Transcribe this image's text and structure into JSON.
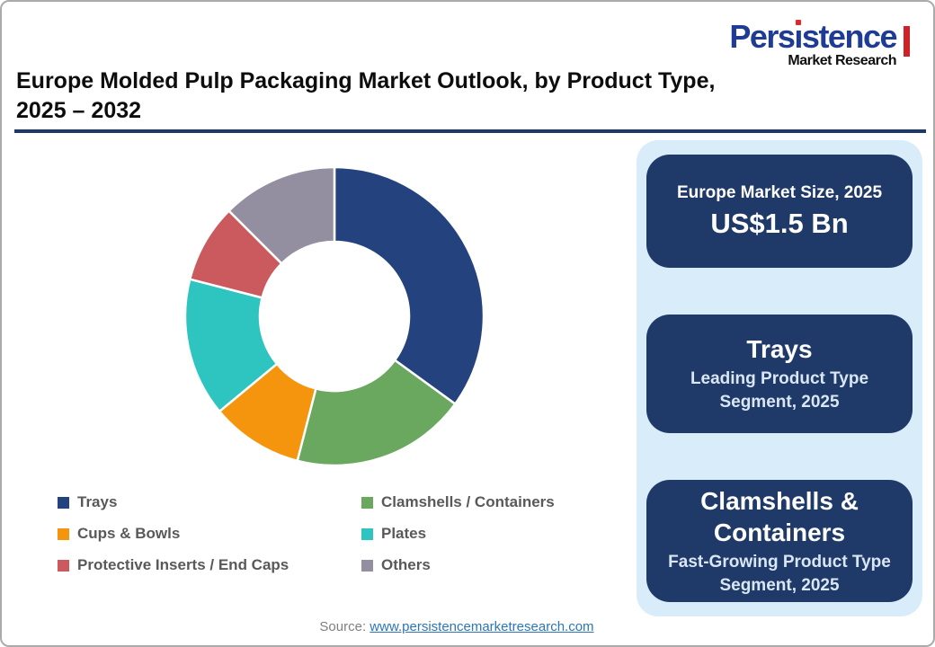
{
  "page": {
    "title_line1": "Europe Molded Pulp Packaging Market Outlook, by Product Type,",
    "title_line2": "2025 – 2032",
    "source_label": "Source:",
    "source_link": "www.persistencemarketresearch.com"
  },
  "brand": {
    "name_pre": "Pers",
    "name_dotless_i": "ı",
    "name_post": "stence",
    "subtitle": "Market Research",
    "name_color": "#1f3c94",
    "accent_red": "#d02028"
  },
  "sidebar": {
    "panel_color": "#d9ecf9",
    "card_color": "#1f3a68",
    "cards": [
      {
        "title": "Europe Market Size, 2025",
        "value": "US$1.5 Bn"
      },
      {
        "title": "Trays",
        "subtitle": "Leading Product Type Segment, 2025"
      },
      {
        "title": "Clamshells & Containers",
        "subtitle": "Fast-Growing Product Type Segment, 2025"
      }
    ]
  },
  "chart_data": {
    "type": "pie",
    "subtype": "donut",
    "title": "Europe Molded Pulp Packaging Market Outlook, by Product Type, 2025 – 2032",
    "start_angle_deg": 0,
    "direction": "clockwise",
    "inner_radius_ratio": 0.49,
    "legend_position": "bottom-two-columns",
    "segments": [
      {
        "label": "Trays",
        "value_pct": 35.0,
        "color": "#24427d"
      },
      {
        "label": "Clamshells / Containers",
        "value_pct": 19.0,
        "color": "#69a85e"
      },
      {
        "label": "Cups & Bowls",
        "value_pct": 10.0,
        "color": "#f5950e"
      },
      {
        "label": "Plates",
        "value_pct": 15.0,
        "color": "#2ec4bf"
      },
      {
        "label": "Protective Inserts / End Caps",
        "value_pct": 8.5,
        "color": "#cb5a5f"
      },
      {
        "label": "Others",
        "value_pct": 12.5,
        "color": "#948fa0"
      }
    ]
  },
  "colors": {
    "divider": "#1f3864",
    "legend_text": "#595959",
    "source_link_blue": "#2e75b6"
  }
}
